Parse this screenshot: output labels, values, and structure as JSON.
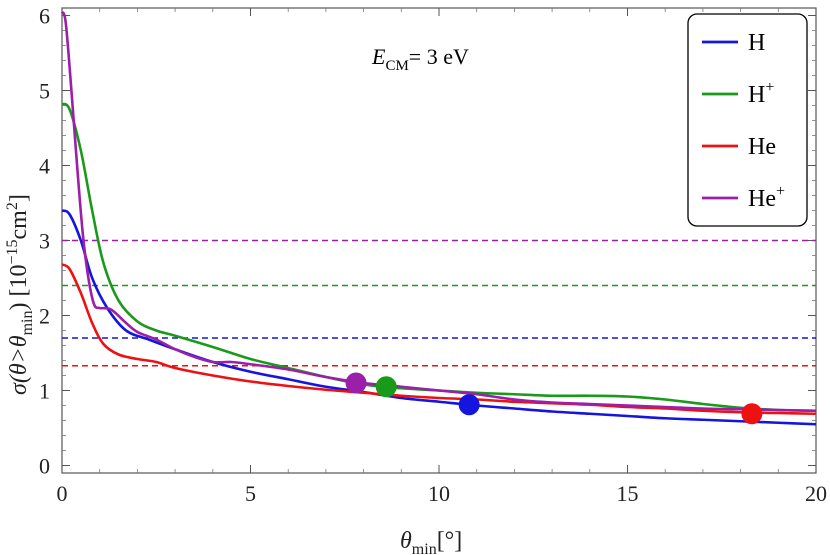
{
  "chart_data": {
    "type": "line",
    "annotation": {
      "main": "E",
      "sub": "CM",
      "rest": "= 3 eV"
    },
    "xlabel": {
      "main": "θ",
      "sub": "min",
      "rest": "[°]"
    },
    "ylabel": {
      "pre": "σ(θ>θ",
      "sub": "min",
      "mid": ") [10",
      "sup1": "−15",
      "unit": "cm",
      "sup2": "2",
      "post": "]"
    },
    "xlim": [
      0,
      20
    ],
    "ylim": [
      -0.1,
      6.1
    ],
    "xticks": [
      0,
      5,
      10,
      15,
      20
    ],
    "yticks": [
      0,
      1,
      2,
      3,
      4,
      5,
      6
    ],
    "legend_position": "top-right",
    "series": [
      {
        "name": "H",
        "name_sup": "",
        "color": "#1515e0",
        "x": [
          0,
          0.2,
          0.5,
          0.8,
          1.2,
          1.7,
          2.3,
          3,
          4,
          5,
          6,
          7,
          8,
          9,
          10,
          11,
          12,
          13,
          14,
          15,
          16,
          17,
          18,
          19,
          20
        ],
        "y": [
          3.4,
          3.35,
          3.0,
          2.5,
          2.1,
          1.8,
          1.68,
          1.55,
          1.38,
          1.25,
          1.15,
          1.05,
          0.98,
          0.9,
          0.85,
          0.8,
          0.76,
          0.72,
          0.69,
          0.66,
          0.63,
          0.61,
          0.59,
          0.57,
          0.55
        ],
        "threshold": 1.7,
        "marker": {
          "x": 10.8,
          "y": 0.81
        }
      },
      {
        "name": "H",
        "name_sup": "+",
        "color": "#1a9a1a",
        "x": [
          0,
          0.2,
          0.5,
          0.8,
          1.1,
          1.5,
          2,
          2.5,
          3,
          4,
          5,
          6,
          7,
          8,
          9,
          10,
          11,
          12,
          13,
          14,
          15,
          16,
          17,
          18,
          19,
          20
        ],
        "y": [
          4.82,
          4.75,
          4.2,
          3.4,
          2.7,
          2.2,
          1.92,
          1.8,
          1.73,
          1.58,
          1.42,
          1.3,
          1.18,
          1.08,
          1.03,
          1.0,
          0.97,
          0.95,
          0.93,
          0.93,
          0.92,
          0.88,
          0.82,
          0.77,
          0.74,
          0.73
        ],
        "threshold": 2.4,
        "marker": {
          "x": 8.6,
          "y": 1.05
        }
      },
      {
        "name": "He",
        "name_sup": "",
        "color": "#ee1111",
        "x": [
          0,
          0.2,
          0.5,
          0.8,
          1.1,
          1.5,
          2,
          2.5,
          3,
          4,
          5,
          6,
          7,
          8,
          9,
          10,
          11,
          12,
          13,
          14,
          15,
          16,
          17,
          18,
          19,
          20
        ],
        "y": [
          2.68,
          2.62,
          2.3,
          1.9,
          1.62,
          1.48,
          1.42,
          1.38,
          1.3,
          1.2,
          1.12,
          1.06,
          1.01,
          0.97,
          0.93,
          0.9,
          0.88,
          0.85,
          0.83,
          0.81,
          0.78,
          0.76,
          0.73,
          0.71,
          0.7,
          0.69
        ],
        "threshold": 1.33,
        "marker": {
          "x": 18.3,
          "y": 0.69
        }
      },
      {
        "name": "He",
        "name_sup": "+",
        "color": "#9b1fa8",
        "x": [
          0,
          0.1,
          0.25,
          0.4,
          0.55,
          0.7,
          0.85,
          1.0,
          1.3,
          1.7,
          2.0,
          2.5,
          3.0,
          3.5,
          4,
          4.5,
          5,
          6,
          7,
          8,
          9,
          10,
          11,
          12,
          13,
          14,
          15,
          16,
          17,
          18,
          19,
          20
        ],
        "y": [
          6.05,
          5.9,
          5.0,
          4.0,
          3.1,
          2.5,
          2.15,
          2.1,
          2.08,
          1.9,
          1.78,
          1.68,
          1.55,
          1.45,
          1.38,
          1.38,
          1.35,
          1.28,
          1.18,
          1.1,
          1.05,
          1.0,
          0.95,
          0.88,
          0.84,
          0.82,
          0.8,
          0.78,
          0.76,
          0.75,
          0.74,
          0.73
        ],
        "threshold": 3.0,
        "marker": {
          "x": 7.8,
          "y": 1.1
        }
      }
    ]
  }
}
